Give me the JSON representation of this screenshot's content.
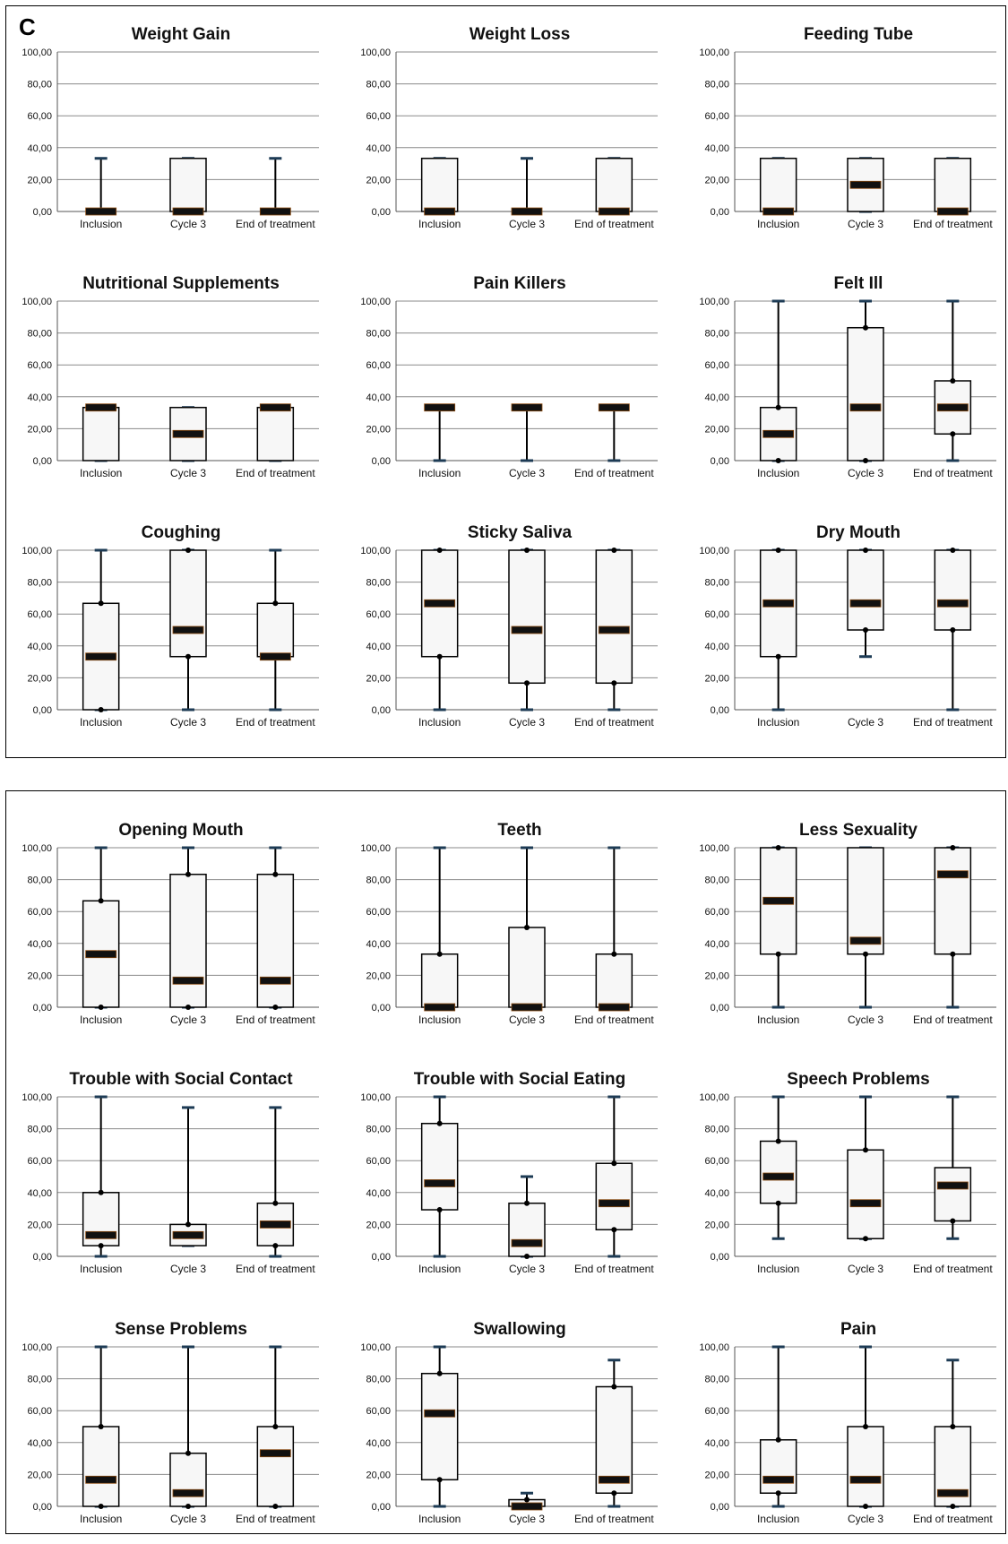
{
  "figure": {
    "panel_letter": "C",
    "categories": [
      "Inclusion",
      "Cycle 3",
      "End of treatment"
    ],
    "y_ticks": [
      "0,00",
      "20,00",
      "40,00",
      "60,00",
      "80,00",
      "100,00"
    ]
  },
  "chart_data": [
    {
      "type": "box",
      "title": "Weight Gain",
      "ylim": [
        0,
        100
      ],
      "categories": [
        "Inclusion",
        "Cycle 3",
        "End of treatment"
      ],
      "boxes": [
        {
          "whisker_low": 0,
          "q1": 0,
          "median": 0,
          "q3": 0,
          "whisker_high": 33.3,
          "points": []
        },
        {
          "whisker_low": 0,
          "q1": 0,
          "median": 0,
          "q3": 33.3,
          "whisker_high": 33.3,
          "points": []
        },
        {
          "whisker_low": 0,
          "q1": 0,
          "median": 0,
          "q3": 0,
          "whisker_high": 33.3,
          "points": []
        }
      ]
    },
    {
      "type": "box",
      "title": "Weight Loss",
      "ylim": [
        0,
        100
      ],
      "categories": [
        "Inclusion",
        "Cycle 3",
        "End of treatment"
      ],
      "boxes": [
        {
          "whisker_low": 0,
          "q1": 0,
          "median": 0,
          "q3": 33.3,
          "whisker_high": 33.3,
          "points": []
        },
        {
          "whisker_low": 0,
          "q1": 0,
          "median": 0,
          "q3": 0,
          "whisker_high": 33.3,
          "points": []
        },
        {
          "whisker_low": 0,
          "q1": 0,
          "median": 0,
          "q3": 33.3,
          "whisker_high": 33.3,
          "points": []
        }
      ]
    },
    {
      "type": "box",
      "title": "Feeding Tube",
      "ylim": [
        0,
        100
      ],
      "categories": [
        "Inclusion",
        "Cycle 3",
        "End of treatment"
      ],
      "boxes": [
        {
          "whisker_low": 0,
          "q1": 0,
          "median": 0,
          "q3": 33.3,
          "whisker_high": 33.3,
          "points": []
        },
        {
          "whisker_low": 0,
          "q1": 0,
          "median": 16.7,
          "q3": 33.3,
          "whisker_high": 33.3,
          "points": []
        },
        {
          "whisker_low": 0,
          "q1": 0,
          "median": 0,
          "q3": 33.3,
          "whisker_high": 33.3,
          "points": []
        }
      ]
    },
    {
      "type": "box",
      "title": "Nutritional Supplements",
      "ylim": [
        0,
        100
      ],
      "categories": [
        "Inclusion",
        "Cycle 3",
        "End of treatment"
      ],
      "boxes": [
        {
          "whisker_low": 0,
          "q1": 0,
          "median": 33.3,
          "q3": 33.3,
          "whisker_high": 33.3,
          "points": []
        },
        {
          "whisker_low": 0,
          "q1": 0,
          "median": 16.7,
          "q3": 33.3,
          "whisker_high": 33.3,
          "points": []
        },
        {
          "whisker_low": 0,
          "q1": 0,
          "median": 33.3,
          "q3": 33.3,
          "whisker_high": 33.3,
          "points": []
        }
      ]
    },
    {
      "type": "box",
      "title": "Pain Killers",
      "ylim": [
        0,
        100
      ],
      "categories": [
        "Inclusion",
        "Cycle 3",
        "End of treatment"
      ],
      "boxes": [
        {
          "whisker_low": 0,
          "q1": 33.3,
          "median": 33.3,
          "q3": 33.3,
          "whisker_high": 33.3,
          "points": []
        },
        {
          "whisker_low": 0,
          "q1": 33.3,
          "median": 33.3,
          "q3": 33.3,
          "whisker_high": 33.3,
          "points": []
        },
        {
          "whisker_low": 0,
          "q1": 33.3,
          "median": 33.3,
          "q3": 33.3,
          "whisker_high": 33.3,
          "points": []
        }
      ]
    },
    {
      "type": "box",
      "title": "Felt Ill",
      "ylim": [
        0,
        100
      ],
      "categories": [
        "Inclusion",
        "Cycle 3",
        "End of treatment"
      ],
      "boxes": [
        {
          "whisker_low": 0,
          "q1": 0,
          "median": 16.7,
          "q3": 33.3,
          "whisker_high": 100,
          "points": [
            0,
            33.3
          ]
        },
        {
          "whisker_low": 0,
          "q1": 0,
          "median": 33.3,
          "q3": 83.3,
          "whisker_high": 100,
          "points": [
            0,
            83.3
          ]
        },
        {
          "whisker_low": 0,
          "q1": 16.7,
          "median": 33.3,
          "q3": 50,
          "whisker_high": 100,
          "points": [
            16.7,
            50
          ]
        }
      ]
    },
    {
      "type": "box",
      "title": "Coughing",
      "ylim": [
        0,
        100
      ],
      "categories": [
        "Inclusion",
        "Cycle 3",
        "End of treatment"
      ],
      "boxes": [
        {
          "whisker_low": 0,
          "q1": 0,
          "median": 33.3,
          "q3": 66.7,
          "whisker_high": 100,
          "points": [
            0,
            66.7
          ]
        },
        {
          "whisker_low": 0,
          "q1": 33.3,
          "median": 50,
          "q3": 100,
          "whisker_high": 100,
          "points": [
            33.3,
            100
          ]
        },
        {
          "whisker_low": 0,
          "q1": 33.3,
          "median": 33.3,
          "q3": 66.7,
          "whisker_high": 100,
          "points": [
            33.3,
            66.7
          ]
        }
      ]
    },
    {
      "type": "box",
      "title": "Sticky Saliva",
      "ylim": [
        0,
        100
      ],
      "categories": [
        "Inclusion",
        "Cycle 3",
        "End of treatment"
      ],
      "boxes": [
        {
          "whisker_low": 0,
          "q1": 33.3,
          "median": 66.7,
          "q3": 100,
          "whisker_high": 100,
          "points": [
            33.3,
            100
          ]
        },
        {
          "whisker_low": 0,
          "q1": 16.7,
          "median": 50,
          "q3": 100,
          "whisker_high": 100,
          "points": [
            16.7,
            100
          ]
        },
        {
          "whisker_low": 0,
          "q1": 16.7,
          "median": 50,
          "q3": 100,
          "whisker_high": 100,
          "points": [
            16.7,
            100
          ]
        }
      ]
    },
    {
      "type": "box",
      "title": "Dry Mouth",
      "ylim": [
        0,
        100
      ],
      "categories": [
        "Inclusion",
        "Cycle 3",
        "End of treatment"
      ],
      "boxes": [
        {
          "whisker_low": 0,
          "q1": 33.3,
          "median": 66.7,
          "q3": 100,
          "whisker_high": 100,
          "points": [
            33.3,
            100
          ]
        },
        {
          "whisker_low": 33.3,
          "q1": 50,
          "median": 66.7,
          "q3": 100,
          "whisker_high": 100,
          "points": [
            50,
            100
          ]
        },
        {
          "whisker_low": 0,
          "q1": 50,
          "median": 66.7,
          "q3": 100,
          "whisker_high": 100,
          "points": [
            50,
            100
          ]
        }
      ]
    },
    {
      "type": "box",
      "title": "Opening Mouth",
      "ylim": [
        0,
        100
      ],
      "categories": [
        "Inclusion",
        "Cycle 3",
        "End of treatment"
      ],
      "boxes": [
        {
          "whisker_low": 0,
          "q1": 0,
          "median": 33.3,
          "q3": 66.7,
          "whisker_high": 100,
          "points": [
            0,
            66.7
          ]
        },
        {
          "whisker_low": 0,
          "q1": 0,
          "median": 16.7,
          "q3": 83.3,
          "whisker_high": 100,
          "points": [
            0,
            83.3
          ]
        },
        {
          "whisker_low": 0,
          "q1": 0,
          "median": 16.7,
          "q3": 83.3,
          "whisker_high": 100,
          "points": [
            0,
            83.3
          ]
        }
      ]
    },
    {
      "type": "box",
      "title": "Teeth",
      "ylim": [
        0,
        100
      ],
      "categories": [
        "Inclusion",
        "Cycle 3",
        "End of treatment"
      ],
      "boxes": [
        {
          "whisker_low": 0,
          "q1": 0,
          "median": 0,
          "q3": 33.3,
          "whisker_high": 100,
          "points": [
            33.3
          ]
        },
        {
          "whisker_low": 0,
          "q1": 0,
          "median": 0,
          "q3": 50,
          "whisker_high": 100,
          "points": [
            50
          ]
        },
        {
          "whisker_low": 0,
          "q1": 0,
          "median": 0,
          "q3": 33.3,
          "whisker_high": 100,
          "points": [
            33.3
          ]
        }
      ]
    },
    {
      "type": "box",
      "title": "Less Sexuality",
      "ylim": [
        0,
        100
      ],
      "categories": [
        "Inclusion",
        "Cycle 3",
        "End of treatment"
      ],
      "boxes": [
        {
          "whisker_low": 0,
          "q1": 33.3,
          "median": 66.7,
          "q3": 100,
          "whisker_high": 100,
          "points": [
            33.3,
            100
          ]
        },
        {
          "whisker_low": 0,
          "q1": 33.3,
          "median": 41.7,
          "q3": 100,
          "whisker_high": 100,
          "points": [
            33.3
          ]
        },
        {
          "whisker_low": 0,
          "q1": 33.3,
          "median": 83.3,
          "q3": 100,
          "whisker_high": 100,
          "points": [
            33.3,
            100
          ]
        }
      ]
    },
    {
      "type": "box",
      "title": "Trouble with Social Contact",
      "ylim": [
        0,
        100
      ],
      "categories": [
        "Inclusion",
        "Cycle 3",
        "End of treatment"
      ],
      "boxes": [
        {
          "whisker_low": 0,
          "q1": 6.7,
          "median": 13.3,
          "q3": 40,
          "whisker_high": 100,
          "points": [
            6.7,
            40
          ]
        },
        {
          "whisker_low": 6.7,
          "q1": 6.7,
          "median": 13.3,
          "q3": 20,
          "whisker_high": 93.3,
          "points": [
            20
          ]
        },
        {
          "whisker_low": 0,
          "q1": 6.7,
          "median": 20,
          "q3": 33.3,
          "whisker_high": 93.3,
          "points": [
            6.7,
            33.3
          ]
        }
      ]
    },
    {
      "type": "box",
      "title": "Trouble with Social Eating",
      "ylim": [
        0,
        100
      ],
      "categories": [
        "Inclusion",
        "Cycle 3",
        "End of treatment"
      ],
      "boxes": [
        {
          "whisker_low": 0,
          "q1": 29.2,
          "median": 45.8,
          "q3": 83.3,
          "whisker_high": 100,
          "points": [
            29.2,
            83.3
          ]
        },
        {
          "whisker_low": 0,
          "q1": 0,
          "median": 8.3,
          "q3": 33.3,
          "whisker_high": 50,
          "points": [
            0,
            33.3
          ]
        },
        {
          "whisker_low": 0,
          "q1": 16.7,
          "median": 33.3,
          "q3": 58.3,
          "whisker_high": 100,
          "points": [
            16.7,
            58.3
          ]
        }
      ]
    },
    {
      "type": "box",
      "title": "Speech Problems",
      "ylim": [
        0,
        100
      ],
      "categories": [
        "Inclusion",
        "Cycle 3",
        "End of treatment"
      ],
      "boxes": [
        {
          "whisker_low": 11.1,
          "q1": 33.3,
          "median": 50,
          "q3": 72.2,
          "whisker_high": 100,
          "points": [
            33.3,
            72.2
          ]
        },
        {
          "whisker_low": 11.1,
          "q1": 11.1,
          "median": 33.3,
          "q3": 66.7,
          "whisker_high": 100,
          "points": [
            11.1,
            66.7
          ]
        },
        {
          "whisker_low": 11.1,
          "q1": 22.2,
          "median": 44.4,
          "q3": 55.6,
          "whisker_high": 100,
          "points": [
            22.2
          ]
        }
      ]
    },
    {
      "type": "box",
      "title": "Sense Problems",
      "ylim": [
        0,
        100
      ],
      "categories": [
        "Inclusion",
        "Cycle 3",
        "End of treatment"
      ],
      "boxes": [
        {
          "whisker_low": 0,
          "q1": 0,
          "median": 16.7,
          "q3": 50,
          "whisker_high": 100,
          "points": [
            0,
            50
          ]
        },
        {
          "whisker_low": 0,
          "q1": 0,
          "median": 8.3,
          "q3": 33.3,
          "whisker_high": 100,
          "points": [
            0,
            33.3
          ]
        },
        {
          "whisker_low": 0,
          "q1": 0,
          "median": 33.3,
          "q3": 50,
          "whisker_high": 100,
          "points": [
            0,
            50
          ]
        }
      ]
    },
    {
      "type": "box",
      "title": "Swallowing",
      "ylim": [
        0,
        100
      ],
      "categories": [
        "Inclusion",
        "Cycle 3",
        "End of treatment"
      ],
      "boxes": [
        {
          "whisker_low": 0,
          "q1": 16.7,
          "median": 58.3,
          "q3": 83.3,
          "whisker_high": 100,
          "points": [
            16.7,
            83.3
          ]
        },
        {
          "whisker_low": 0,
          "q1": 0,
          "median": 0,
          "q3": 4.2,
          "whisker_high": 8.3,
          "points": [
            0,
            4.2
          ]
        },
        {
          "whisker_low": 0,
          "q1": 8.3,
          "median": 16.7,
          "q3": 75,
          "whisker_high": 91.7,
          "points": [
            8.3,
            75
          ]
        }
      ]
    },
    {
      "type": "box",
      "title": "Pain",
      "ylim": [
        0,
        100
      ],
      "categories": [
        "Inclusion",
        "Cycle 3",
        "End of treatment"
      ],
      "boxes": [
        {
          "whisker_low": 0,
          "q1": 8.3,
          "median": 16.7,
          "q3": 41.7,
          "whisker_high": 100,
          "points": [
            8.3,
            41.7
          ]
        },
        {
          "whisker_low": 0,
          "q1": 0,
          "median": 16.7,
          "q3": 50,
          "whisker_high": 100,
          "points": [
            0,
            50
          ]
        },
        {
          "whisker_low": 0,
          "q1": 0,
          "median": 8.3,
          "q3": 50,
          "whisker_high": 91.7,
          "points": [
            0,
            50
          ]
        }
      ]
    }
  ]
}
